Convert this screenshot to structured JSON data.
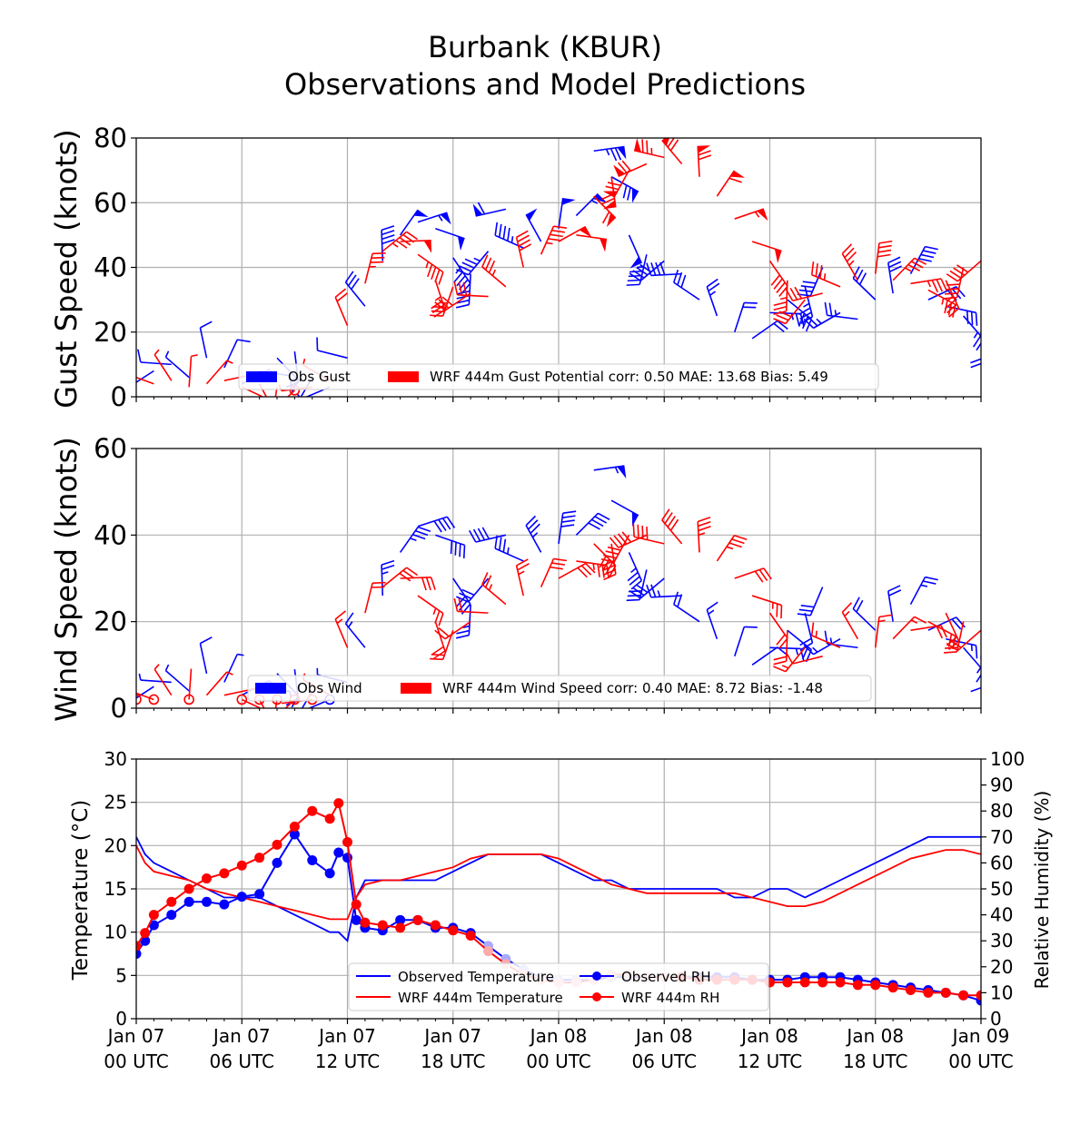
{
  "title_line1": "Burbank (KBUR)",
  "title_line2": "Observations and Model Predictions",
  "colors": {
    "obs": "#0000ff",
    "model": "#ff0000",
    "obs_rh_fill": "#aaaaff",
    "model_rh_fill": "#ffaaaa",
    "grid": "#b0b0b0"
  },
  "x_tick_labels": [
    [
      "Jan 07",
      "00 UTC"
    ],
    [
      "Jan 07",
      "06 UTC"
    ],
    [
      "Jan 07",
      "12 UTC"
    ],
    [
      "Jan 07",
      "18 UTC"
    ],
    [
      "Jan 08",
      "00 UTC"
    ],
    [
      "Jan 08",
      "06 UTC"
    ],
    [
      "Jan 08",
      "12 UTC"
    ],
    [
      "Jan 08",
      "18 UTC"
    ],
    [
      "Jan 09",
      "00 UTC"
    ]
  ],
  "chart_data": [
    {
      "type": "scatter",
      "ylabel": "Gust Speed (knots)",
      "ylim": [
        0,
        80
      ],
      "yticks": [
        0,
        20,
        40,
        60,
        80
      ],
      "xlim_hours": [
        0,
        48
      ],
      "grid": true,
      "legend_location": "lower center",
      "series": [
        {
          "name": "Obs Gust",
          "x_hours": [
            0,
            1,
            2,
            3,
            4,
            5,
            6,
            7,
            8,
            9,
            10,
            11,
            12,
            13,
            14,
            15,
            16,
            17,
            18,
            19,
            20,
            21,
            22,
            23,
            24,
            25,
            26,
            27,
            28,
            29,
            30,
            31,
            32,
            33,
            34,
            35,
            36,
            37,
            38,
            39,
            40,
            41,
            42,
            43,
            44,
            45,
            46,
            47,
            48
          ],
          "values": [
            5,
            8,
            10,
            6,
            12,
            9,
            4,
            8,
            12,
            14,
            6,
            3,
            12,
            28,
            42,
            50,
            54,
            52,
            43,
            38,
            45,
            58,
            46,
            48,
            52,
            56,
            76,
            68,
            50,
            44,
            42,
            38,
            30,
            25,
            20,
            18,
            26,
            30,
            34,
            40,
            26,
            24,
            30,
            32,
            38,
            30,
            28,
            25,
            20
          ]
        },
        {
          "name": "WRF 444m Gust Potential corr: 0.50 MAE: 13.68 Bias: 5.49",
          "x_hours": [
            0,
            1,
            2,
            3,
            4,
            5,
            6,
            7,
            8,
            9,
            10,
            11,
            12,
            13,
            14,
            15,
            16,
            17,
            18,
            19,
            20,
            21,
            22,
            23,
            24,
            25,
            26,
            27,
            28,
            29,
            30,
            31,
            32,
            33,
            34,
            35,
            36,
            37,
            38,
            39,
            40,
            41,
            42,
            43,
            44,
            45,
            46,
            47,
            48
          ],
          "values": [
            3,
            4,
            5,
            3,
            4,
            5,
            3,
            4,
            3,
            2,
            3,
            5,
            22,
            35,
            45,
            48,
            44,
            36,
            34,
            32,
            31,
            34,
            40,
            44,
            48,
            50,
            62,
            68,
            70,
            72,
            74,
            72,
            68,
            62,
            55,
            48,
            42,
            36,
            30,
            32,
            34,
            36,
            38,
            36,
            35,
            33,
            36,
            40,
            42
          ]
        }
      ]
    },
    {
      "type": "scatter",
      "ylabel": "Wind Speed (knots)",
      "ylim": [
        0,
        60
      ],
      "yticks": [
        0,
        20,
        40,
        60
      ],
      "xlim_hours": [
        0,
        48
      ],
      "grid": true,
      "legend_location": "lower center",
      "series": [
        {
          "name": "Obs Wind",
          "x_hours": [
            0,
            1,
            2,
            3,
            4,
            5,
            6,
            7,
            8,
            9,
            10,
            11,
            12,
            13,
            14,
            15,
            16,
            17,
            18,
            19,
            20,
            21,
            22,
            23,
            24,
            25,
            26,
            27,
            28,
            29,
            30,
            31,
            32,
            33,
            34,
            35,
            36,
            37,
            38,
            39,
            40,
            41,
            42,
            43,
            44,
            45,
            46,
            47,
            48
          ],
          "values": [
            3,
            5,
            6,
            4,
            8,
            6,
            3,
            5,
            8,
            9,
            4,
            2,
            6,
            14,
            26,
            36,
            42,
            40,
            30,
            24,
            30,
            40,
            34,
            36,
            38,
            40,
            55,
            48,
            36,
            32,
            30,
            26,
            20,
            16,
            12,
            10,
            14,
            18,
            22,
            28,
            16,
            14,
            18,
            20,
            24,
            18,
            16,
            14,
            12
          ]
        },
        {
          "name": "WRF 444m Wind Speed corr: 0.40 MAE: 8.72 Bias: -1.48",
          "x_hours": [
            0,
            1,
            2,
            3,
            4,
            5,
            6,
            7,
            8,
            9,
            10,
            11,
            12,
            13,
            14,
            15,
            16,
            17,
            18,
            19,
            20,
            21,
            22,
            23,
            24,
            25,
            26,
            27,
            28,
            29,
            30,
            31,
            32,
            33,
            34,
            35,
            36,
            37,
            38,
            39,
            40,
            41,
            42,
            43,
            44,
            45,
            46,
            47,
            48
          ],
          "values": [
            2,
            2,
            3,
            2,
            3,
            3,
            2,
            2,
            2,
            2,
            2,
            3,
            14,
            22,
            28,
            30,
            26,
            20,
            18,
            20,
            22,
            24,
            26,
            28,
            30,
            34,
            38,
            38,
            40,
            40,
            38,
            38,
            36,
            34,
            30,
            26,
            22,
            18,
            14,
            12,
            14,
            16,
            14,
            16,
            18,
            20,
            22,
            20,
            18
          ]
        }
      ]
    },
    {
      "type": "line",
      "ylabel": "Temperature (°C)",
      "y2label": "Relative Humidity (%)",
      "ylim": [
        0,
        30
      ],
      "yticks": [
        0,
        5,
        10,
        15,
        20,
        25,
        30
      ],
      "y2lim": [
        0,
        100
      ],
      "y2ticks": [
        0,
        10,
        20,
        30,
        40,
        50,
        60,
        70,
        80,
        90,
        100
      ],
      "xlim_hours": [
        0,
        48
      ],
      "grid": true,
      "legend_location": "lower center",
      "series": [
        {
          "name": "Observed Temperature",
          "axis": "left",
          "x_hours": [
            0,
            0.5,
            1,
            2,
            3,
            4,
            5,
            6,
            7,
            8,
            9,
            10,
            11,
            11.5,
            12,
            12.5,
            13,
            14,
            15,
            16,
            17,
            18,
            19,
            20,
            21,
            22,
            23,
            24,
            25,
            26,
            27,
            28,
            29,
            30,
            31,
            32,
            33,
            34,
            35,
            36,
            37,
            38,
            39,
            40,
            41,
            42,
            43,
            44,
            45,
            46,
            47,
            48
          ],
          "values": [
            21,
            19,
            18,
            17,
            16,
            15,
            14,
            14,
            14,
            13,
            12,
            11,
            10,
            10,
            9,
            14,
            16,
            16,
            16,
            16,
            16,
            17,
            18,
            19,
            19,
            19,
            19,
            18,
            17,
            16,
            16,
            15,
            15,
            15,
            15,
            15,
            15,
            14,
            14,
            15,
            15,
            14,
            15,
            16,
            17,
            18,
            19,
            20,
            21,
            21,
            21,
            21
          ]
        },
        {
          "name": "WRF 444m Temperature",
          "axis": "left",
          "x_hours": [
            0,
            0.5,
            1,
            2,
            3,
            4,
            5,
            6,
            7,
            8,
            9,
            10,
            11,
            11.5,
            12,
            12.5,
            13,
            14,
            15,
            16,
            17,
            18,
            19,
            20,
            21,
            22,
            23,
            24,
            25,
            26,
            27,
            28,
            29,
            30,
            31,
            32,
            33,
            34,
            35,
            36,
            37,
            38,
            39,
            40,
            41,
            42,
            43,
            44,
            45,
            46,
            47,
            48
          ],
          "values": [
            20,
            18,
            17,
            16.5,
            16,
            15,
            14.5,
            14,
            13.5,
            13,
            12.5,
            12,
            11.5,
            11.5,
            11.5,
            14,
            15.5,
            16,
            16,
            16.5,
            17,
            17.5,
            18.5,
            19,
            19,
            19,
            19,
            18.5,
            17.5,
            16.5,
            15.5,
            15,
            14.5,
            14.5,
            14.5,
            14.5,
            14.5,
            14.5,
            14,
            13.5,
            13,
            13,
            13.5,
            14.5,
            15.5,
            16.5,
            17.5,
            18.5,
            19,
            19.5,
            19.5,
            19
          ]
        },
        {
          "name": "Observed RH",
          "axis": "right",
          "x_hours": [
            0,
            0.5,
            1,
            2,
            3,
            4,
            5,
            6,
            7,
            8,
            9,
            10,
            11,
            11.5,
            12,
            12.5,
            13,
            14,
            15,
            16,
            17,
            18,
            19,
            20,
            21,
            22,
            23,
            24,
            25,
            26,
            27,
            28,
            29,
            30,
            31,
            32,
            33,
            34,
            35,
            36,
            37,
            38,
            39,
            40,
            41,
            42,
            43,
            44,
            45,
            46,
            47,
            48
          ],
          "values": [
            25,
            30,
            36,
            40,
            45,
            45,
            44,
            47,
            48,
            60,
            71,
            61,
            56,
            64,
            62,
            38,
            35,
            34,
            38,
            38,
            35,
            35,
            33,
            28,
            23,
            19,
            16,
            15,
            15,
            15,
            16,
            16,
            16,
            16,
            16,
            16,
            16,
            16,
            15,
            15,
            15,
            16,
            16,
            16,
            15,
            14,
            13,
            12,
            11,
            10,
            9,
            7
          ]
        },
        {
          "name": "WRF 444m RH",
          "axis": "right",
          "x_hours": [
            0,
            0.5,
            1,
            2,
            3,
            4,
            5,
            6,
            7,
            8,
            9,
            10,
            11,
            11.5,
            12,
            12.5,
            13,
            14,
            15,
            16,
            17,
            18,
            19,
            20,
            21,
            22,
            23,
            24,
            25,
            26,
            27,
            28,
            29,
            30,
            31,
            32,
            33,
            34,
            35,
            36,
            37,
            38,
            39,
            40,
            41,
            42,
            43,
            44,
            45,
            46,
            47,
            48
          ],
          "values": [
            28,
            33,
            40,
            45,
            50,
            54,
            56,
            59,
            62,
            67,
            74,
            80,
            77,
            83,
            68,
            44,
            37,
            36,
            35,
            38,
            36,
            34,
            32,
            26,
            21,
            17,
            15,
            14,
            14,
            15,
            17,
            17,
            16,
            16,
            16,
            15,
            15,
            15,
            15,
            14,
            14,
            14,
            14,
            14,
            13,
            13,
            12,
            11,
            10,
            10,
            9,
            9
          ]
        }
      ]
    }
  ]
}
